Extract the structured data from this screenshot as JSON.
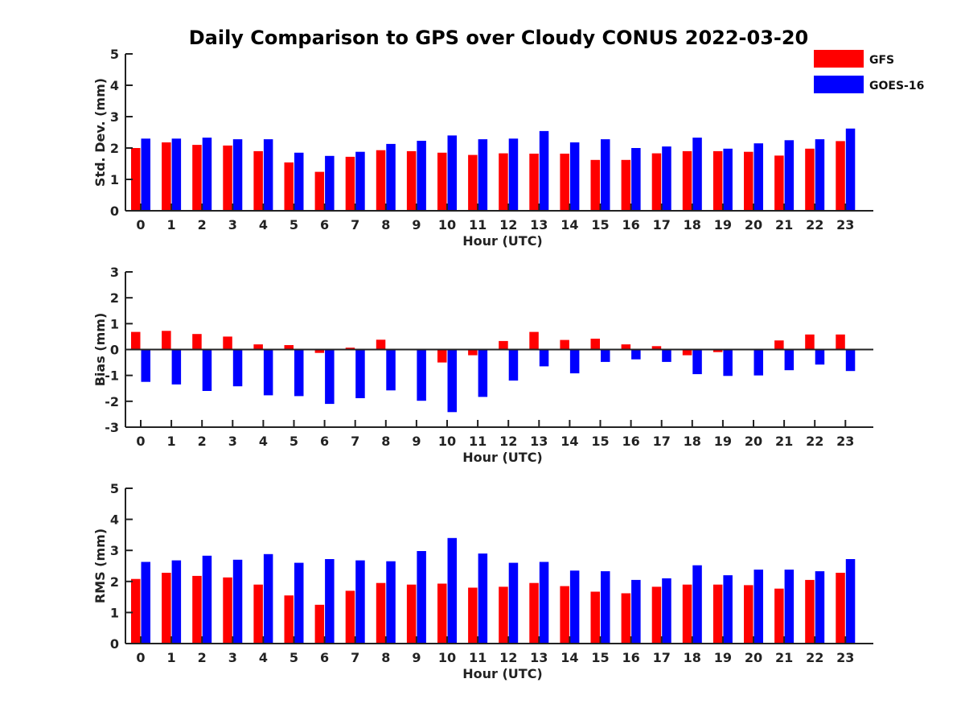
{
  "title": "Daily Comparison to GPS over Cloudy CONUS 2022-03-20",
  "legend": {
    "placement": "top-right",
    "items": [
      {
        "name": "GFS",
        "color": "#ff0000"
      },
      {
        "name": "GOES-16",
        "color": "#0000ff"
      }
    ]
  },
  "chart_data": [
    {
      "type": "bar",
      "xlabel": "Hour (UTC)",
      "ylabel": "Std. Dev. (mm)",
      "ylim": [
        0,
        5
      ],
      "yticks": [
        0,
        1,
        2,
        3,
        4,
        5
      ],
      "categories": [
        "0",
        "1",
        "2",
        "3",
        "4",
        "5",
        "6",
        "7",
        "8",
        "9",
        "10",
        "11",
        "12",
        "13",
        "14",
        "15",
        "16",
        "17",
        "18",
        "19",
        "20",
        "21",
        "22",
        "23"
      ],
      "series": [
        {
          "name": "GFS",
          "color": "#ff0000",
          "values": [
            2.0,
            2.18,
            2.1,
            2.08,
            1.9,
            1.54,
            1.24,
            1.72,
            1.93,
            1.9,
            1.85,
            1.78,
            1.83,
            1.82,
            1.82,
            1.62,
            1.62,
            1.83,
            1.9,
            1.9,
            1.88,
            1.76,
            1.98,
            2.22
          ]
        },
        {
          "name": "GOES-16",
          "color": "#0000ff",
          "values": [
            2.3,
            2.3,
            2.33,
            2.28,
            2.28,
            1.85,
            1.75,
            1.88,
            2.13,
            2.23,
            2.4,
            2.28,
            2.3,
            2.54,
            2.18,
            2.28,
            2.0,
            2.05,
            2.33,
            1.98,
            2.15,
            2.25,
            2.28,
            2.62
          ]
        }
      ]
    },
    {
      "type": "bar",
      "xlabel": "Hour (UTC)",
      "ylabel": "Bias (mm)",
      "ylim": [
        -3,
        3
      ],
      "yticks": [
        -3,
        -2,
        -1,
        0,
        1,
        2,
        3
      ],
      "categories": [
        "0",
        "1",
        "2",
        "3",
        "4",
        "5",
        "6",
        "7",
        "8",
        "9",
        "10",
        "11",
        "12",
        "13",
        "14",
        "15",
        "16",
        "17",
        "18",
        "19",
        "20",
        "21",
        "22",
        "23"
      ],
      "series": [
        {
          "name": "GFS",
          "color": "#ff0000",
          "values": [
            0.68,
            0.72,
            0.6,
            0.5,
            0.2,
            0.17,
            -0.13,
            0.07,
            0.38,
            -0.03,
            -0.5,
            -0.22,
            0.33,
            0.68,
            0.37,
            0.42,
            0.2,
            0.13,
            -0.22,
            -0.1,
            0.03,
            0.35,
            0.58,
            0.58
          ]
        },
        {
          "name": "GOES-16",
          "color": "#0000ff",
          "values": [
            -1.25,
            -1.35,
            -1.6,
            -1.42,
            -1.77,
            -1.8,
            -2.1,
            -1.88,
            -1.58,
            -1.98,
            -2.42,
            -1.83,
            -1.2,
            -0.65,
            -0.92,
            -0.48,
            -0.38,
            -0.48,
            -0.95,
            -1.02,
            -1.0,
            -0.8,
            -0.58,
            -0.83
          ]
        }
      ]
    },
    {
      "type": "bar",
      "xlabel": "Hour (UTC)",
      "ylabel": "RMS (mm)",
      "ylim": [
        0,
        5
      ],
      "yticks": [
        0,
        1,
        2,
        3,
        4,
        5
      ],
      "categories": [
        "0",
        "1",
        "2",
        "3",
        "4",
        "5",
        "6",
        "7",
        "8",
        "9",
        "10",
        "11",
        "12",
        "13",
        "14",
        "15",
        "16",
        "17",
        "18",
        "19",
        "20",
        "21",
        "22",
        "23"
      ],
      "series": [
        {
          "name": "GFS",
          "color": "#ff0000",
          "values": [
            2.08,
            2.28,
            2.18,
            2.13,
            1.9,
            1.55,
            1.25,
            1.7,
            1.95,
            1.9,
            1.93,
            1.8,
            1.83,
            1.95,
            1.85,
            1.67,
            1.62,
            1.83,
            1.9,
            1.9,
            1.88,
            1.77,
            2.05,
            2.28
          ]
        },
        {
          "name": "GOES-16",
          "color": "#0000ff",
          "values": [
            2.63,
            2.68,
            2.83,
            2.7,
            2.88,
            2.6,
            2.72,
            2.68,
            2.65,
            2.98,
            3.4,
            2.9,
            2.6,
            2.63,
            2.35,
            2.33,
            2.05,
            2.1,
            2.52,
            2.2,
            2.38,
            2.38,
            2.33,
            2.72
          ]
        }
      ]
    }
  ]
}
